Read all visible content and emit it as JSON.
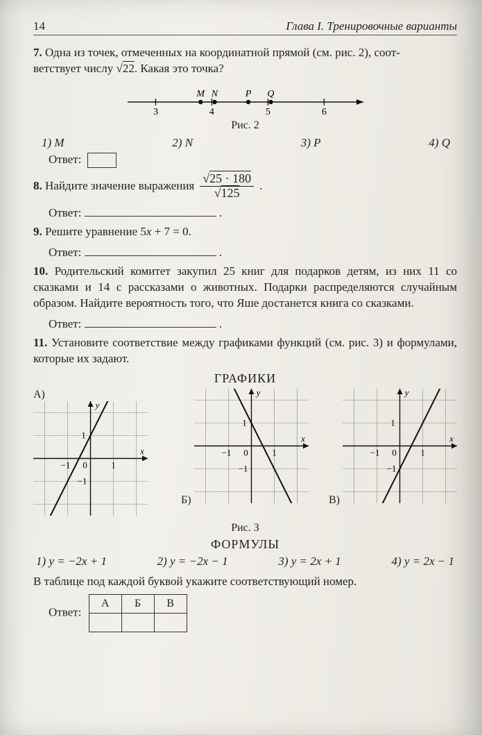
{
  "header": {
    "page_num": "14",
    "chapter": "Глава I. Тренировочные варианты"
  },
  "p7": {
    "num": "7.",
    "text_a": "Одна из точек, отмеченных на координатной прямой (см. рис. 2), соот-",
    "text_b": "ветствует числу ",
    "sqrt_val": "22",
    "text_c": ". Какая это точка?",
    "fig": {
      "x_min": 2.5,
      "x_max": 6.7,
      "ticks": [
        3,
        4,
        5,
        6
      ],
      "points": {
        "M": 3.8,
        "N": 4.05,
        "P": 4.65,
        "Q": 5.05
      },
      "caption": "Рис. 2"
    },
    "opts": [
      "1) M",
      "2) N",
      "3) P",
      "4) Q"
    ],
    "answer_label": "Ответ:"
  },
  "p8": {
    "num": "8.",
    "text": "Найдите значение выражения",
    "frac_num_a": "25",
    "frac_num_b": "180",
    "frac_den": "125",
    "dot": "·",
    "answer_label": "Ответ:"
  },
  "p9": {
    "num": "9.",
    "text": "Решите уравнение 5x + 7 = 0.",
    "answer_label": "Ответ:"
  },
  "p10": {
    "num": "10.",
    "text": "Родительский комитет закупил 25 книг для подарков детям, из них 11 со сказками и 14 с рассказами о животных. Подарки распределяются случайным образом. Найдите вероятность того, что Яше достанется книга со сказками.",
    "answer_label": "Ответ:"
  },
  "p11": {
    "num": "11.",
    "text": "Установите соответствие между графиками функций (см. рис. 3) и формулами, которые их задают.",
    "heading_graphs": "ГРАФИКИ",
    "labels": [
      "А)",
      "Б)",
      "В)"
    ],
    "caption": "Рис. 3",
    "heading_formulas": "ФОРМУЛЫ",
    "formulas": [
      "1) y = −2x + 1",
      "2) y = −2x − 1",
      "3) y = 2x + 1",
      "4) y = 2x − 1"
    ],
    "instr": "В таблице под каждой буквой укажите соответствующий номер.",
    "answer_label": "Ответ:",
    "cols": [
      "А",
      "Б",
      "В"
    ],
    "graphs": {
      "A": {
        "slope": 2,
        "intercept": 1
      },
      "B": {
        "slope": -2,
        "intercept": 1
      },
      "C": {
        "slope": 2,
        "intercept": -1
      },
      "grid_min": -2.5,
      "grid_max": 2.5,
      "axis_color": "#111",
      "grid_color": "#888",
      "line_color": "#111",
      "xlabel": "x",
      "ylabel": "y",
      "tick_neg1": "−1",
      "tick_1": "1",
      "tick_0": "0"
    }
  }
}
